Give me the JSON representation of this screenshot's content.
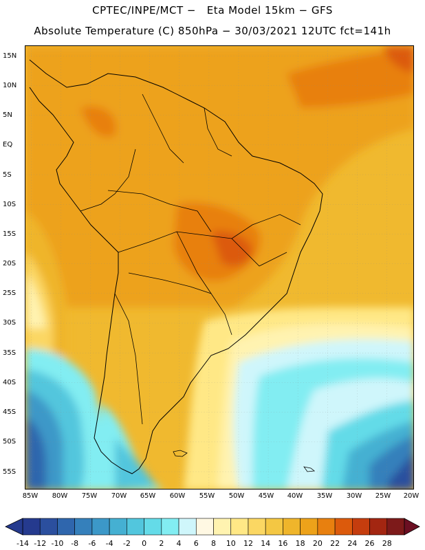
{
  "header": {
    "line1": "CPTEC/INPE/MCT −   Eta Model 15km − GFS",
    "line2": "Absolute Temperature (C) 850hPa − 30/03/2021 12UTC fct=141h"
  },
  "lat_ticks": [
    "15N",
    "10N",
    "5N",
    "EQ",
    "5S",
    "10S",
    "15S",
    "20S",
    "25S",
    "30S",
    "35S",
    "40S",
    "45S",
    "50S",
    "55S"
  ],
  "lon_ticks": [
    "85W",
    "80W",
    "75W",
    "70W",
    "65W",
    "60W",
    "55W",
    "50W",
    "45W",
    "40W",
    "35W",
    "30W",
    "25W",
    "20W"
  ],
  "colorbar": {
    "labels": [
      "-14",
      "-12",
      "-10",
      "-8",
      "-6",
      "-4",
      "-2",
      "0",
      "2",
      "4",
      "6",
      "8",
      "10",
      "12",
      "14",
      "16",
      "18",
      "20",
      "22",
      "24",
      "26",
      "28"
    ],
    "colors": [
      "#253a8e",
      "#2b4f9e",
      "#2f66ad",
      "#3580bb",
      "#3c98c8",
      "#45b0d2",
      "#52c6dd",
      "#64dbe8",
      "#82edf2",
      "#cff6fb",
      "#fff8e3",
      "#fff3b0",
      "#ffe886",
      "#fbd763",
      "#f4c743",
      "#efb52b",
      "#eda21a",
      "#e8800f",
      "#dc5a0c",
      "#c53d0e",
      "#a32611",
      "#7d1a1a"
    ],
    "left_arrow_color": "#253a8e",
    "right_arrow_color": "#6b0f22"
  }
}
